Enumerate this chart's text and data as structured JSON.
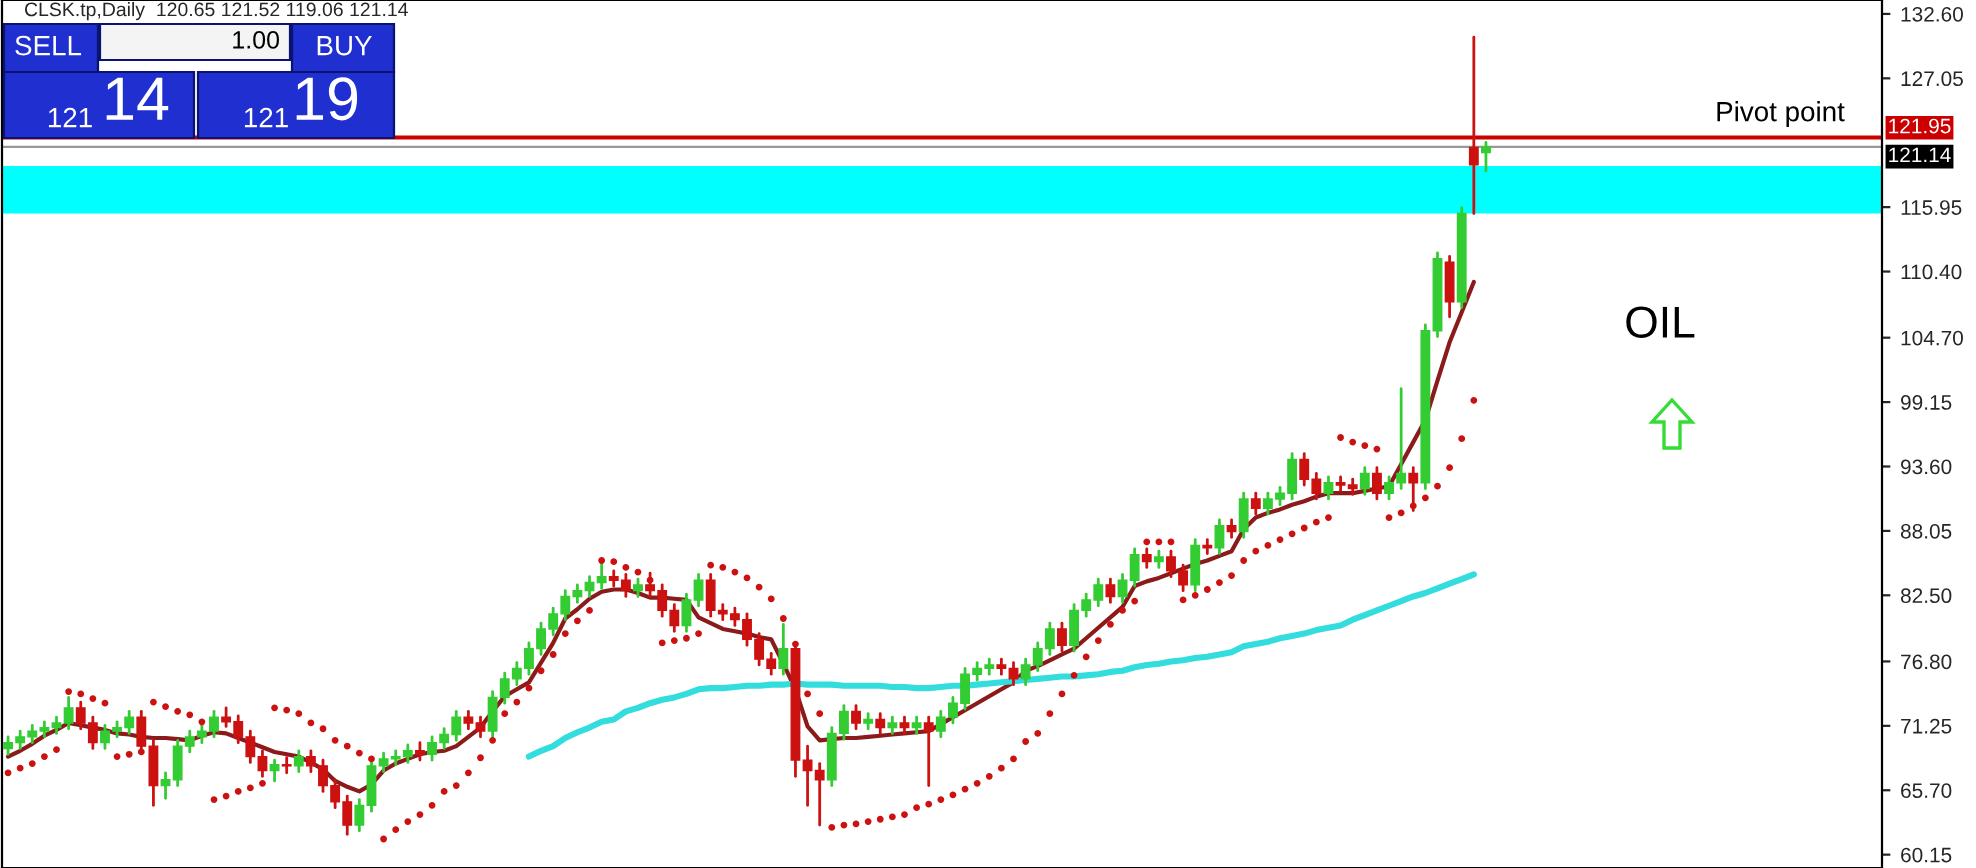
{
  "chart_data": {
    "type": "candlestick",
    "title": "CLSK.tp,Daily  120.65 121.52 119.06 121.14",
    "categories": [
      null,
      null,
      null,
      null,
      null,
      null,
      null,
      null,
      null,
      null,
      null,
      null,
      null,
      null,
      null,
      null,
      null,
      null,
      null,
      null,
      null,
      null,
      null,
      null,
      null,
      null,
      null,
      null,
      null,
      null,
      null,
      null,
      null,
      null,
      null,
      null,
      null,
      null,
      null,
      null,
      null,
      null,
      null,
      null,
      null,
      null,
      null,
      null,
      null,
      null,
      null,
      null,
      null,
      null,
      null,
      null,
      null,
      null,
      null,
      null,
      null,
      null,
      null,
      null,
      null,
      null,
      null,
      null,
      null,
      null,
      null,
      null,
      null,
      null,
      null,
      null,
      null,
      null,
      null,
      null,
      null,
      null,
      null,
      null,
      null,
      null,
      null,
      null,
      null,
      null,
      null,
      null,
      null,
      null,
      null,
      null,
      null,
      null,
      null,
      null,
      null,
      null,
      null,
      null,
      null,
      null,
      null,
      null,
      null,
      null,
      null,
      null,
      null,
      null,
      null,
      null,
      null,
      null,
      null,
      null,
      null,
      null,
      null
    ],
    "ohlc": [
      [
        69.3,
        70.3,
        68.8,
        69.8
      ],
      [
        69.8,
        70.8,
        69.3,
        70.3
      ],
      [
        70.3,
        71.3,
        69.8,
        70.8
      ],
      [
        70.8,
        71.6,
        70.3,
        71.1
      ],
      [
        71.1,
        72.0,
        70.6,
        71.5
      ],
      [
        71.5,
        73.7,
        71.0,
        72.8
      ],
      [
        72.8,
        73.3,
        71.0,
        71.5
      ],
      [
        71.5,
        72.0,
        69.3,
        69.8
      ],
      [
        69.8,
        71.3,
        69.3,
        70.8
      ],
      [
        70.8,
        71.6,
        70.3,
        71.1
      ],
      [
        71.1,
        72.5,
        70.6,
        72.0
      ],
      [
        72.0,
        72.5,
        69.0,
        69.5
      ],
      [
        69.5,
        70.0,
        64.4,
        66.1
      ],
      [
        66.1,
        67.2,
        65.0,
        66.6
      ],
      [
        66.6,
        70.0,
        66.1,
        69.5
      ],
      [
        69.5,
        70.8,
        69.0,
        70.3
      ],
      [
        70.3,
        71.3,
        69.8,
        70.8
      ],
      [
        70.8,
        72.5,
        70.3,
        72.0
      ],
      [
        72.0,
        72.8,
        71.2,
        71.6
      ],
      [
        71.6,
        72.1,
        69.8,
        70.3
      ],
      [
        70.3,
        70.8,
        68.1,
        68.6
      ],
      [
        68.6,
        69.1,
        66.9,
        67.4
      ],
      [
        67.4,
        68.3,
        66.5,
        67.9
      ],
      [
        67.9,
        68.5,
        67.2,
        67.8
      ],
      [
        67.8,
        69.1,
        67.3,
        68.6
      ],
      [
        68.6,
        69.1,
        67.3,
        67.8
      ],
      [
        67.8,
        68.3,
        65.6,
        66.1
      ],
      [
        66.1,
        66.6,
        64.2,
        64.7
      ],
      [
        64.7,
        65.2,
        61.9,
        62.7
      ],
      [
        62.7,
        64.9,
        62.2,
        64.4
      ],
      [
        64.4,
        68.3,
        63.9,
        67.8
      ],
      [
        67.8,
        68.9,
        67.3,
        68.4
      ],
      [
        68.4,
        69.1,
        67.9,
        68.6
      ],
      [
        68.6,
        69.6,
        68.1,
        69.1
      ],
      [
        69.1,
        69.8,
        68.3,
        68.8
      ],
      [
        68.8,
        70.3,
        68.3,
        69.8
      ],
      [
        69.8,
        71.0,
        69.3,
        70.5
      ],
      [
        70.5,
        72.5,
        70.0,
        72.0
      ],
      [
        72.0,
        72.5,
        71.0,
        71.5
      ],
      [
        71.5,
        72.0,
        70.3,
        70.8
      ],
      [
        70.8,
        74.2,
        70.3,
        73.7
      ],
      [
        73.7,
        75.8,
        73.2,
        75.3
      ],
      [
        75.3,
        76.7,
        74.8,
        76.2
      ],
      [
        76.2,
        78.4,
        75.7,
        77.9
      ],
      [
        77.9,
        80.1,
        77.4,
        79.6
      ],
      [
        79.6,
        81.4,
        79.1,
        80.9
      ],
      [
        80.9,
        82.9,
        80.4,
        82.4
      ],
      [
        82.4,
        83.4,
        81.9,
        82.9
      ],
      [
        82.9,
        84.1,
        82.4,
        83.6
      ],
      [
        83.6,
        85.3,
        83.1,
        84.1
      ],
      [
        84.1,
        84.6,
        83.3,
        83.8
      ],
      [
        83.8,
        84.3,
        82.4,
        82.9
      ],
      [
        82.9,
        83.9,
        82.4,
        83.4
      ],
      [
        83.4,
        84.4,
        82.4,
        82.9
      ],
      [
        82.9,
        83.4,
        80.7,
        81.2
      ],
      [
        81.2,
        81.7,
        79.4,
        79.9
      ],
      [
        79.9,
        82.6,
        79.4,
        82.1
      ],
      [
        82.1,
        84.3,
        81.6,
        83.8
      ],
      [
        83.8,
        84.3,
        80.7,
        81.2
      ],
      [
        81.2,
        81.7,
        80.4,
        80.9
      ],
      [
        80.9,
        81.4,
        79.9,
        80.4
      ],
      [
        80.4,
        80.9,
        78.2,
        78.7
      ],
      [
        78.7,
        79.2,
        76.5,
        77.0
      ],
      [
        77.0,
        77.5,
        75.7,
        76.2
      ],
      [
        76.2,
        80.0,
        75.7,
        77.9
      ],
      [
        77.9,
        78.4,
        66.9,
        68.3
      ],
      [
        68.3,
        69.5,
        64.4,
        67.4
      ],
      [
        67.4,
        68.0,
        62.7,
        66.6
      ],
      [
        66.6,
        71.1,
        66.1,
        70.6
      ],
      [
        70.6,
        73.0,
        70.1,
        72.5
      ],
      [
        72.5,
        73.0,
        71.0,
        71.5
      ],
      [
        71.5,
        72.3,
        71.0,
        71.8
      ],
      [
        71.8,
        72.3,
        70.6,
        71.1
      ],
      [
        71.1,
        72.0,
        70.6,
        71.5
      ],
      [
        71.5,
        72.0,
        70.6,
        71.1
      ],
      [
        71.1,
        72.0,
        70.6,
        71.5
      ],
      [
        71.5,
        72.0,
        66.1,
        70.8
      ],
      [
        70.8,
        72.5,
        70.3,
        72.0
      ],
      [
        72.0,
        73.7,
        71.5,
        73.2
      ],
      [
        73.2,
        76.2,
        72.7,
        75.7
      ],
      [
        75.7,
        76.7,
        75.2,
        76.2
      ],
      [
        76.2,
        77.0,
        75.7,
        76.5
      ],
      [
        76.5,
        77.0,
        75.7,
        76.2
      ],
      [
        76.2,
        76.7,
        74.8,
        75.3
      ],
      [
        75.3,
        77.0,
        74.8,
        76.5
      ],
      [
        76.5,
        78.4,
        76.0,
        77.9
      ],
      [
        77.9,
        80.1,
        77.4,
        79.6
      ],
      [
        79.6,
        80.1,
        77.7,
        78.2
      ],
      [
        78.2,
        81.7,
        77.7,
        81.2
      ],
      [
        81.2,
        82.6,
        80.7,
        82.1
      ],
      [
        82.1,
        83.9,
        81.6,
        83.4
      ],
      [
        83.4,
        83.9,
        81.9,
        82.4
      ],
      [
        82.4,
        84.3,
        81.9,
        83.8
      ],
      [
        83.8,
        86.5,
        83.3,
        86.0
      ],
      [
        86.0,
        86.5,
        84.9,
        85.4
      ],
      [
        85.4,
        86.3,
        84.9,
        85.8
      ],
      [
        85.8,
        86.3,
        84.1,
        84.6
      ],
      [
        84.6,
        85.1,
        82.9,
        83.4
      ],
      [
        83.4,
        87.3,
        82.9,
        86.8
      ],
      [
        86.8,
        87.3,
        86.1,
        86.6
      ],
      [
        86.6,
        89.0,
        86.1,
        88.5
      ],
      [
        88.5,
        89.0,
        87.5,
        88.0
      ],
      [
        88.0,
        91.3,
        87.5,
        90.8
      ],
      [
        90.8,
        91.3,
        89.5,
        90.0
      ],
      [
        90.0,
        91.3,
        89.5,
        90.8
      ],
      [
        90.8,
        91.8,
        90.3,
        91.3
      ],
      [
        91.3,
        94.7,
        90.8,
        94.2
      ],
      [
        94.2,
        94.7,
        92.0,
        92.5
      ],
      [
        92.5,
        93.0,
        90.8,
        91.3
      ],
      [
        91.3,
        92.7,
        90.8,
        92.2
      ],
      [
        92.2,
        92.7,
        91.5,
        92.0
      ],
      [
        92.0,
        92.5,
        91.2,
        91.7
      ],
      [
        91.7,
        93.5,
        91.2,
        93.0
      ],
      [
        93.0,
        93.5,
        90.8,
        91.3
      ],
      [
        91.3,
        92.7,
        90.8,
        92.2
      ],
      [
        92.2,
        100.3,
        91.7,
        93.0
      ],
      [
        93.0,
        93.5,
        89.8,
        92.2
      ],
      [
        92.2,
        105.8,
        91.7,
        105.3
      ],
      [
        105.3,
        112.0,
        104.8,
        111.5
      ],
      [
        111.2,
        111.7,
        106.5,
        107.8
      ],
      [
        107.8,
        115.9,
        107.3,
        115.4
      ],
      [
        121.1,
        130.6,
        115.4,
        119.6
      ],
      [
        120.65,
        121.52,
        119.06,
        121.14
      ]
    ],
    "series": [
      {
        "type": "line",
        "color": "#8b1a1a",
        "values": [
          68.6,
          69.1,
          69.7,
          70.4,
          70.9,
          71.5,
          71.3,
          71.1,
          70.9,
          70.6,
          70.5,
          70.3,
          70.2,
          70.2,
          70.1,
          70.0,
          70.4,
          70.7,
          70.6,
          70.2,
          69.8,
          69.4,
          69.0,
          68.8,
          68.6,
          68.1,
          67.5,
          66.5,
          66.0,
          65.6,
          66.2,
          67.4,
          68.0,
          68.4,
          68.8,
          69.0,
          69.1,
          69.5,
          70.3,
          71.1,
          72.5,
          73.8,
          74.4,
          75.0,
          76.7,
          78.4,
          80.5,
          81.3,
          82.2,
          82.8,
          83.0,
          83.0,
          82.7,
          82.3,
          82.3,
          82.2,
          82.1,
          80.6,
          80.1,
          79.6,
          79.4,
          79.2,
          78.9,
          78.7,
          76.6,
          74.4,
          71.2,
          70.0,
          70.1,
          70.2,
          70.2,
          70.3,
          70.4,
          70.5,
          70.6,
          70.7,
          70.8,
          71.4,
          72.0,
          72.6,
          73.2,
          73.8,
          74.4,
          75.0,
          76.0,
          76.4,
          76.9,
          77.4,
          77.9,
          78.8,
          79.7,
          80.6,
          81.5,
          83.3,
          83.7,
          84.0,
          84.4,
          84.8,
          85.2,
          85.5,
          85.9,
          86.3,
          88.2,
          89.2,
          89.6,
          89.9,
          90.3,
          90.6,
          91.0,
          91.3,
          91.3,
          91.3,
          91.5,
          91.7,
          91.9,
          93.8,
          95.7,
          97.6,
          101.0,
          104.3,
          106.9,
          109.5,
          null
        ]
      },
      {
        "type": "line",
        "color": "#33dddd",
        "values": [
          null,
          null,
          null,
          null,
          null,
          null,
          null,
          null,
          null,
          null,
          null,
          null,
          null,
          null,
          null,
          null,
          null,
          null,
          null,
          null,
          null,
          null,
          null,
          null,
          null,
          null,
          null,
          null,
          null,
          null,
          null,
          null,
          null,
          null,
          null,
          null,
          null,
          null,
          null,
          null,
          null,
          null,
          null,
          68.6,
          69.1,
          69.5,
          70.2,
          70.7,
          71.1,
          71.6,
          71.8,
          72.5,
          72.8,
          73.2,
          73.5,
          73.7,
          74.0,
          74.4,
          74.5,
          74.5,
          74.6,
          74.7,
          74.7,
          74.8,
          74.8,
          74.9,
          74.8,
          74.8,
          74.8,
          74.7,
          74.7,
          74.7,
          74.7,
          74.6,
          74.6,
          74.5,
          74.5,
          74.6,
          74.7,
          74.7,
          74.8,
          74.9,
          75.0,
          75.1,
          75.2,
          75.3,
          75.4,
          75.5,
          75.5,
          75.6,
          75.7,
          75.9,
          76.0,
          76.3,
          76.5,
          76.6,
          76.8,
          76.9,
          77.1,
          77.2,
          77.4,
          77.6,
          78.1,
          78.3,
          78.5,
          78.8,
          79.0,
          79.2,
          79.5,
          79.7,
          79.9,
          80.4,
          80.8,
          81.2,
          81.6,
          82.0,
          82.4,
          82.7,
          83.1,
          83.5,
          83.9,
          84.3,
          null
        ]
      },
      {
        "type": "scatter",
        "color": "#cc1111",
        "marker": "circle",
        "values": [
          67.2,
          67.6,
          68.0,
          68.6,
          69.2,
          74.2,
          74.0,
          73.6,
          73.2,
          68.6,
          68.8,
          69.0,
          73.3,
          72.9,
          72.5,
          72.2,
          71.6,
          64.9,
          65.2,
          65.6,
          65.9,
          66.3,
          72.8,
          72.6,
          72.3,
          71.5,
          71.0,
          70.0,
          69.5,
          68.9,
          68.4,
          61.5,
          62.3,
          63.0,
          63.6,
          64.4,
          65.6,
          66.1,
          67.2,
          68.5,
          70.0,
          72.3,
          73.3,
          74.5,
          76.0,
          77.4,
          79.2,
          80.3,
          81.2,
          85.5,
          85.4,
          84.9,
          84.5,
          83.8,
          78.4,
          78.6,
          78.8,
          79.2,
          85.1,
          84.9,
          84.5,
          84.0,
          83.2,
          82.2,
          80.5,
          78.3,
          74.0,
          72.3,
          62.5,
          62.7,
          62.8,
          63.0,
          63.2,
          63.4,
          63.6,
          64.2,
          64.5,
          64.9,
          65.3,
          65.8,
          66.3,
          66.9,
          67.6,
          68.4,
          69.9,
          70.6,
          72.3,
          74.0,
          75.6,
          77.2,
          78.6,
          80.0,
          81.2,
          82.0,
          87.1,
          87.1,
          87.1,
          82.1,
          82.5,
          83.0,
          83.6,
          84.2,
          85.5,
          86.3,
          86.8,
          87.3,
          87.8,
          88.3,
          88.8,
          89.2,
          96.1,
          95.7,
          95.4,
          95.1,
          89.2,
          89.6,
          90.2,
          90.9,
          91.9,
          93.5,
          96.0,
          99.3,
          null
        ]
      }
    ],
    "ylim": [
      59.0,
      133.8
    ],
    "yticks": [
      {
        "value": 132.6,
        "label": "132.60"
      },
      {
        "value": 127.05,
        "label": "127.05"
      },
      {
        "value": 115.95,
        "label": "115.95"
      },
      {
        "value": 110.4,
        "label": "110.40"
      },
      {
        "value": 104.7,
        "label": "104.70"
      },
      {
        "value": 99.15,
        "label": "99.15"
      },
      {
        "value": 93.6,
        "label": "93.60"
      },
      {
        "value": 88.05,
        "label": "88.05"
      },
      {
        "value": 82.5,
        "label": "82.50"
      },
      {
        "value": 76.8,
        "label": "76.80"
      },
      {
        "value": 71.25,
        "label": "71.25"
      },
      {
        "value": 65.7,
        "label": "65.70"
      },
      {
        "value": 60.15,
        "label": "60.15"
      }
    ],
    "tick_labels": "y",
    "grid": false,
    "ref_lines": [
      {
        "axis": "y",
        "value": 121.95,
        "label": "121.95",
        "color": "#cc0000"
      },
      {
        "axis": "y",
        "value": 121.14,
        "label": "121.14",
        "color": "#999999"
      }
    ],
    "bands": [
      {
        "axis": "y",
        "from": 115.4,
        "to": 119.5,
        "color": "#00ffff"
      }
    ],
    "annotations": [
      "SELL",
      "1.00",
      "BUY",
      "121",
      "14",
      "121",
      "19",
      "Pivot point",
      "OIL"
    ]
  }
}
